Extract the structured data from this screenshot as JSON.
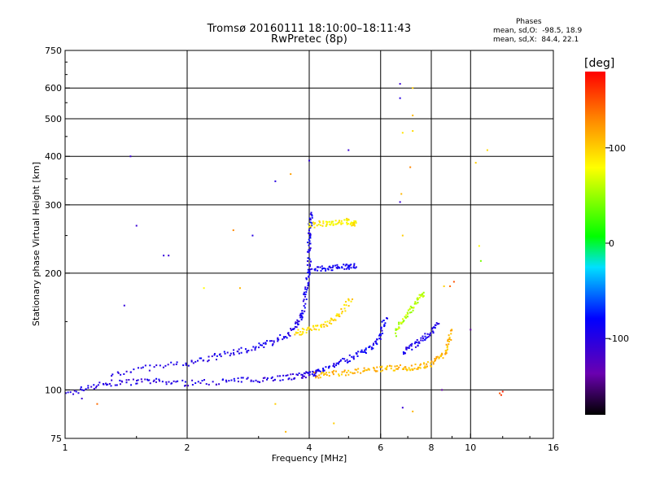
{
  "chart_data": {
    "type": "scatter",
    "title": "Tromsø 20160111 18:10:00–18:11:43",
    "subtitle": "RwPretec (8p)",
    "xlabel": "Frequency [MHz]",
    "ylabel": "Stationary phase Virtual Height [km]",
    "x_scale": "log",
    "y_scale": "log",
    "xlim": [
      1,
      16
    ],
    "ylim": [
      75,
      750
    ],
    "x_ticks": [
      1,
      2,
      4,
      6,
      8,
      10,
      16
    ],
    "x_tick_labels": [
      "1",
      "2",
      "4",
      "6",
      "8",
      "10",
      "16"
    ],
    "y_ticks": [
      75,
      100,
      200,
      300,
      400,
      500,
      600,
      750
    ],
    "y_tick_labels": [
      "75",
      "100",
      "200",
      "300",
      "400",
      "500",
      "600",
      "750"
    ],
    "grid": true,
    "stats": {
      "heading": "Phases",
      "o_mode": "mean, sd,O:  -98.5, 18.9",
      "x_mode": "mean, sd,X:  84.4, 22.1"
    },
    "colorbar": {
      "title": "[deg]",
      "range": [
        -180,
        180
      ],
      "ticks": [
        100,
        0,
        -100
      ],
      "tick_labels": [
        "100",
        "0",
        "-100"
      ]
    },
    "traces": [
      {
        "x": [
          1.0,
          1.15,
          1.3,
          1.5,
          1.7,
          2.0,
          2.4,
          2.8,
          3.2,
          3.6,
          3.9,
          4.1,
          4.2
        ],
        "y": [
          97,
          102,
          104,
          105,
          105,
          104,
          105,
          106,
          107,
          108,
          109,
          110,
          112
        ],
        "phase": -100
      },
      {
        "x": [
          1.3,
          1.6,
          2.0,
          2.3,
          2.6,
          2.9,
          3.2,
          3.5,
          3.7,
          3.85
        ],
        "y": [
          110,
          114,
          117,
          121,
          125,
          128,
          132,
          138,
          145,
          160
        ],
        "phase": -95
      },
      {
        "x": [
          3.8,
          3.9,
          3.95,
          4.0,
          4.0,
          4.02,
          4.05
        ],
        "y": [
          150,
          170,
          190,
          205,
          230,
          260,
          290
        ],
        "phase": -90
      },
      {
        "x": [
          3.7,
          3.9,
          4.2,
          4.5,
          4.8,
          5.1
        ],
        "y": [
          140,
          142,
          145,
          150,
          158,
          175
        ],
        "phase": 95
      },
      {
        "x": [
          4.0,
          4.3,
          4.6,
          4.9,
          5.1,
          5.2
        ],
        "y": [
          265,
          268,
          270,
          272,
          270,
          268
        ],
        "phase": 85
      },
      {
        "x": [
          4.1,
          4.4,
          4.7,
          5.0,
          5.2
        ],
        "y": [
          205,
          205,
          207,
          208,
          210
        ],
        "phase": -90
      },
      {
        "x": [
          4.1,
          4.5,
          5.0,
          5.5,
          6.0,
          6.5,
          7.0,
          7.5,
          8.0,
          8.5,
          8.8,
          9.0
        ],
        "y": [
          109,
          110,
          111,
          112,
          113,
          114,
          114,
          115,
          117,
          122,
          130,
          145
        ],
        "phase": 110
      },
      {
        "x": [
          4.2,
          4.6,
          5.0,
          5.4,
          5.8,
          6.0,
          6.2
        ],
        "y": [
          112,
          116,
          120,
          125,
          130,
          140,
          155
        ],
        "phase": -90
      },
      {
        "x": [
          6.5,
          6.8,
          7.1,
          7.4,
          7.7
        ],
        "y": [
          140,
          150,
          160,
          170,
          178
        ],
        "phase": 60
      },
      {
        "x": [
          6.8,
          7.2,
          7.6,
          8.0,
          8.3
        ],
        "y": [
          125,
          130,
          135,
          140,
          150
        ],
        "phase": -95
      }
    ],
    "points": [
      {
        "x": 6.7,
        "y": 615,
        "phase": -110
      },
      {
        "x": 6.7,
        "y": 565,
        "phase": -100
      },
      {
        "x": 7.2,
        "y": 600,
        "phase": 100
      },
      {
        "x": 7.2,
        "y": 510,
        "phase": 110
      },
      {
        "x": 6.8,
        "y": 460,
        "phase": 90
      },
      {
        "x": 7.2,
        "y": 465,
        "phase": 95
      },
      {
        "x": 5.0,
        "y": 415,
        "phase": -110
      },
      {
        "x": 4.0,
        "y": 390,
        "phase": -105
      },
      {
        "x": 10.3,
        "y": 385,
        "phase": 100
      },
      {
        "x": 11.0,
        "y": 415,
        "phase": 95
      },
      {
        "x": 7.1,
        "y": 375,
        "phase": 130
      },
      {
        "x": 3.6,
        "y": 360,
        "phase": 120
      },
      {
        "x": 3.3,
        "y": 345,
        "phase": -100
      },
      {
        "x": 6.7,
        "y": 305,
        "phase": -110
      },
      {
        "x": 6.75,
        "y": 320,
        "phase": 110
      },
      {
        "x": 1.45,
        "y": 400,
        "phase": -110
      },
      {
        "x": 1.5,
        "y": 265,
        "phase": -110
      },
      {
        "x": 2.6,
        "y": 258,
        "phase": 130
      },
      {
        "x": 2.9,
        "y": 250,
        "phase": -100
      },
      {
        "x": 6.8,
        "y": 250,
        "phase": 100
      },
      {
        "x": 10.5,
        "y": 235,
        "phase": 80
      },
      {
        "x": 10.6,
        "y": 215,
        "phase": 40
      },
      {
        "x": 1.75,
        "y": 222,
        "phase": -105
      },
      {
        "x": 1.8,
        "y": 222,
        "phase": -110
      },
      {
        "x": 2.2,
        "y": 183,
        "phase": 80
      },
      {
        "x": 2.7,
        "y": 183,
        "phase": 110
      },
      {
        "x": 1.4,
        "y": 165,
        "phase": -105
      },
      {
        "x": 10.0,
        "y": 143,
        "phase": -140
      },
      {
        "x": 8.5,
        "y": 100,
        "phase": -140
      },
      {
        "x": 1.1,
        "y": 95,
        "phase": -110
      },
      {
        "x": 1.2,
        "y": 92,
        "phase": 140
      },
      {
        "x": 3.3,
        "y": 92,
        "phase": 100
      },
      {
        "x": 4.6,
        "y": 82,
        "phase": 100
      },
      {
        "x": 3.5,
        "y": 78,
        "phase": 110
      },
      {
        "x": 6.8,
        "y": 90,
        "phase": -110
      },
      {
        "x": 7.2,
        "y": 88,
        "phase": 110
      },
      {
        "x": 11.8,
        "y": 98,
        "phase": 150
      },
      {
        "x": 12.0,
        "y": 99,
        "phase": 170
      },
      {
        "x": 11.9,
        "y": 97,
        "phase": 160
      },
      {
        "x": 9.1,
        "y": 190,
        "phase": 150
      },
      {
        "x": 8.9,
        "y": 185,
        "phase": 140
      },
      {
        "x": 8.6,
        "y": 185,
        "phase": 100
      }
    ]
  }
}
